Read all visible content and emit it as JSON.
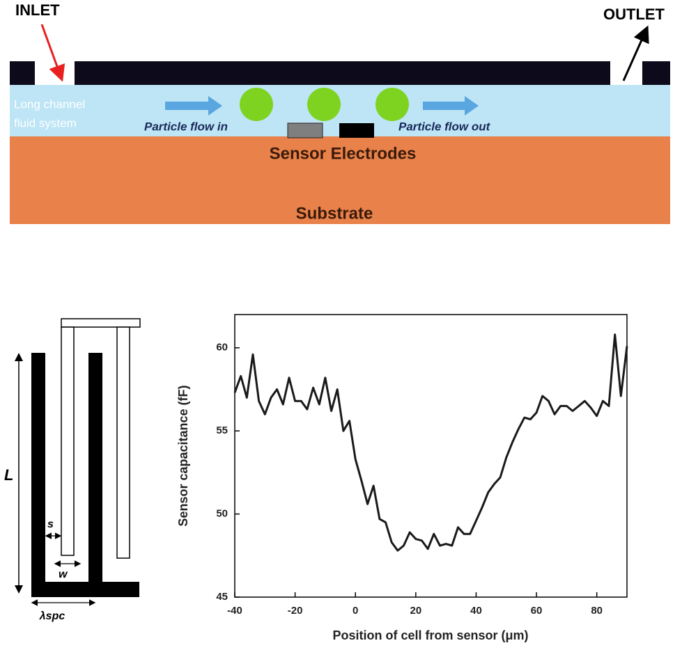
{
  "diagram": {
    "inlet": "INLET",
    "outlet": "OUTLET",
    "channel": [
      "Long channel",
      "fluid system"
    ],
    "flow_in": "Particle flow in",
    "flow_out": "Particle flow out",
    "electrodes": "Sensor Electrodes",
    "substrate": "Substrate",
    "length": "L",
    "spacing": "s",
    "width": "w",
    "wavelength": "λspc"
  },
  "chart_data": {
    "type": "line",
    "xlabel": "Position of cell from sensor (μm)",
    "ylabel": "Sensor capacitance (fF)",
    "xlim": [
      -40,
      90
    ],
    "ylim": [
      45,
      62
    ],
    "xticks": [
      -40,
      -20,
      0,
      20,
      40,
      60,
      80
    ],
    "yticks": [
      45,
      50,
      55,
      60
    ],
    "series": [
      {
        "color": "#1a1a1a",
        "x": [
          -40,
          -38,
          -36,
          -34,
          -32,
          -30,
          -28,
          -26,
          -24,
          -22,
          -20,
          -18,
          -16,
          -14,
          -12,
          -10,
          -8,
          -6,
          -4,
          -2,
          0,
          2,
          4,
          6,
          8,
          10,
          12,
          14,
          16,
          18,
          20,
          22,
          24,
          26,
          28,
          30,
          32,
          34,
          36,
          38,
          40,
          42,
          44,
          46,
          48,
          50,
          52,
          54,
          56,
          58,
          60,
          62,
          64,
          66,
          68,
          70,
          72,
          74,
          76,
          78,
          80,
          82,
          84,
          86,
          88,
          90
        ],
        "values": [
          57.3,
          58.3,
          57.0,
          59.6,
          56.8,
          56.0,
          57.0,
          57.5,
          56.6,
          58.2,
          56.8,
          56.8,
          56.3,
          57.6,
          56.6,
          58.2,
          56.2,
          57.5,
          55.0,
          55.6,
          53.3,
          52.0,
          50.6,
          51.7,
          49.7,
          49.5,
          48.3,
          47.8,
          48.1,
          48.9,
          48.5,
          48.4,
          47.9,
          48.8,
          48.1,
          48.2,
          48.1,
          49.2,
          48.8,
          48.8,
          49.6,
          50.4,
          51.3,
          51.8,
          52.2,
          53.4,
          54.3,
          55.1,
          55.8,
          55.7,
          56.1,
          57.1,
          56.8,
          56.0,
          56.5,
          56.5,
          56.2,
          56.5,
          56.8,
          56.4,
          55.9,
          56.8,
          56.5,
          60.8,
          57.1,
          60.1
        ]
      }
    ]
  }
}
